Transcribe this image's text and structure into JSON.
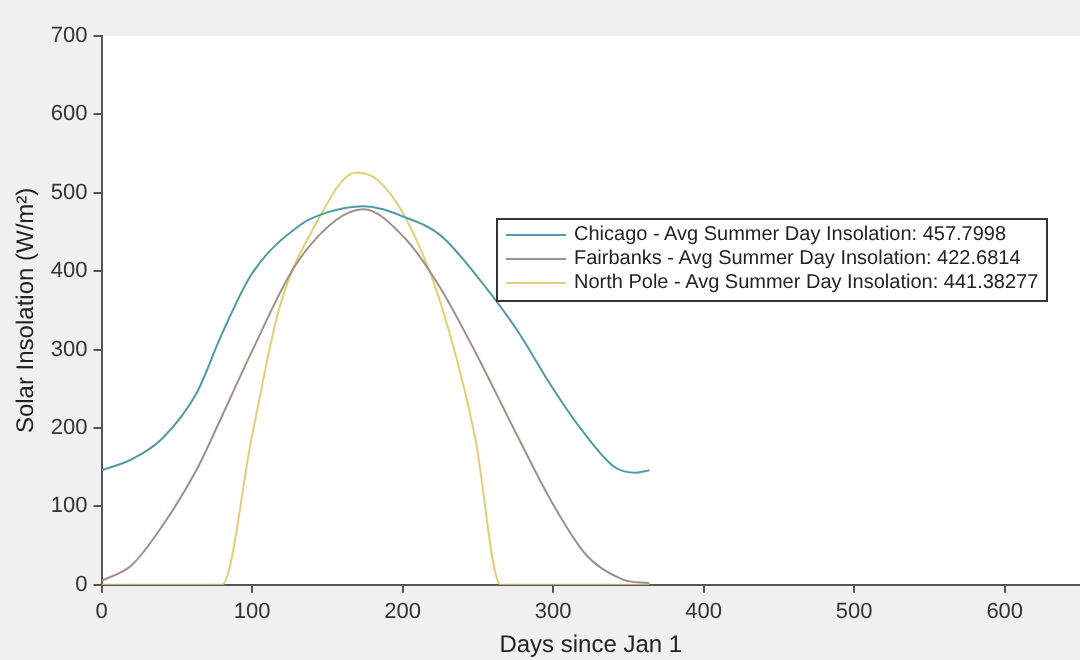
{
  "chart_data": {
    "type": "line",
    "xlabel": "Days since Jan 1",
    "ylabel": "Solar Insolation (W/m²)",
    "xlim": [
      0,
      650
    ],
    "xticks": [
      0,
      100,
      200,
      300,
      400,
      500,
      600
    ],
    "ylim": [
      0,
      700
    ],
    "yticks": [
      0,
      100,
      200,
      300,
      400,
      500,
      600,
      700
    ],
    "grid": false,
    "legend": "right",
    "marker": "none",
    "line_style": "solid",
    "series": [
      {
        "name": "Chicago - Avg Summer Day Insolation: 457.7998",
        "color": "#4e9aa6",
        "x": [
          0,
          20,
          40,
          63,
          80,
          100,
          132,
          150,
          174,
          200,
          225,
          248,
          276,
          299,
          320,
          341,
          355,
          364
        ],
        "values": [
          146,
          160,
          186,
          244,
          320,
          397,
          459,
          475,
          483,
          470,
          446,
          397,
          325,
          253,
          195,
          150,
          143,
          146
        ]
      },
      {
        "name": "Fairbanks - Avg Summer Day Insolation: 422.6814",
        "color": "#a38f8a",
        "x": [
          0,
          20,
          40,
          63,
          80,
          100,
          128,
          155,
          174,
          202,
          225,
          248,
          276,
          299,
          322,
          346,
          364
        ],
        "values": [
          5,
          25,
          74,
          146,
          215,
          298,
          405,
          464,
          479,
          441,
          379,
          298,
          191,
          106,
          38,
          7,
          2
        ]
      },
      {
        "name": "North Pole - Avg Summer Day Insolation: 441.38277",
        "color": "#e3cf72",
        "x": [
          0,
          40,
          80,
          100,
          118,
          142,
          169,
          183,
          202,
          225,
          248,
          265,
          300,
          330,
          364
        ],
        "values": [
          0,
          0,
          0,
          190,
          352,
          459,
          526,
          517,
          468,
          361,
          190,
          0,
          0,
          0,
          0
        ]
      }
    ]
  }
}
